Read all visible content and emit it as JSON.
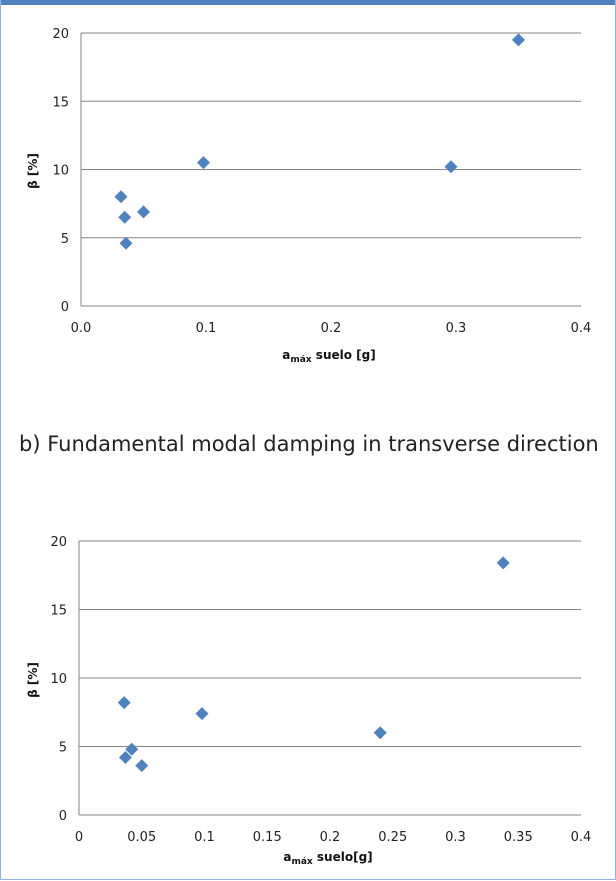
{
  "colors": {
    "marker": "#4f81bd",
    "frame": "#8fb3dd",
    "strip": "#4f81bd",
    "grid": "#868686"
  },
  "captions": {
    "b": "b) Fundamental modal damping in transverse direction"
  },
  "chart_data": [
    {
      "type": "scatter",
      "grid": true,
      "legend": "none",
      "ylabel": "β [%]",
      "xlabel_main": "a",
      "xlabel_sub": "máx",
      "xlabel_rest": " suelo [g]",
      "xlim": [
        0,
        0.4
      ],
      "ylim": [
        0,
        20
      ],
      "xticks": [
        0,
        0.1,
        0.2,
        0.3,
        0.4
      ],
      "xtick_labels": [
        "0.0",
        "0.1",
        "0.2",
        "0.3",
        "0.4"
      ],
      "yticks": [
        0,
        5,
        10,
        15,
        20
      ],
      "ytick_labels": [
        "0",
        "5",
        "10",
        "15",
        "20"
      ],
      "series": [
        {
          "x": [
            0.032,
            0.035,
            0.036,
            0.05,
            0.098,
            0.296,
            0.35
          ],
          "y": [
            8.0,
            6.5,
            4.6,
            6.9,
            10.5,
            10.2,
            19.5
          ]
        }
      ]
    },
    {
      "type": "scatter",
      "grid": true,
      "legend": "none",
      "ylabel": "β [%]",
      "xlabel_main": "a",
      "xlabel_sub": "máx",
      "xlabel_rest": " suelo[g]",
      "xlim": [
        0,
        0.4
      ],
      "ylim": [
        0,
        20
      ],
      "xticks": [
        0,
        0.05,
        0.1,
        0.15,
        0.2,
        0.25,
        0.3,
        0.35,
        0.4
      ],
      "xtick_labels": [
        "0",
        "0.05",
        "0.1",
        "0.15",
        "0.2",
        "0.25",
        "0.3",
        "0.35",
        "0.4"
      ],
      "yticks": [
        0,
        5,
        10,
        15,
        20
      ],
      "ytick_labels": [
        "0",
        "5",
        "10",
        "15",
        "20"
      ],
      "series": [
        {
          "x": [
            0.036,
            0.037,
            0.042,
            0.05,
            0.098,
            0.24,
            0.338
          ],
          "y": [
            8.2,
            4.2,
            4.8,
            3.6,
            7.4,
            6.0,
            18.4
          ]
        }
      ]
    }
  ]
}
